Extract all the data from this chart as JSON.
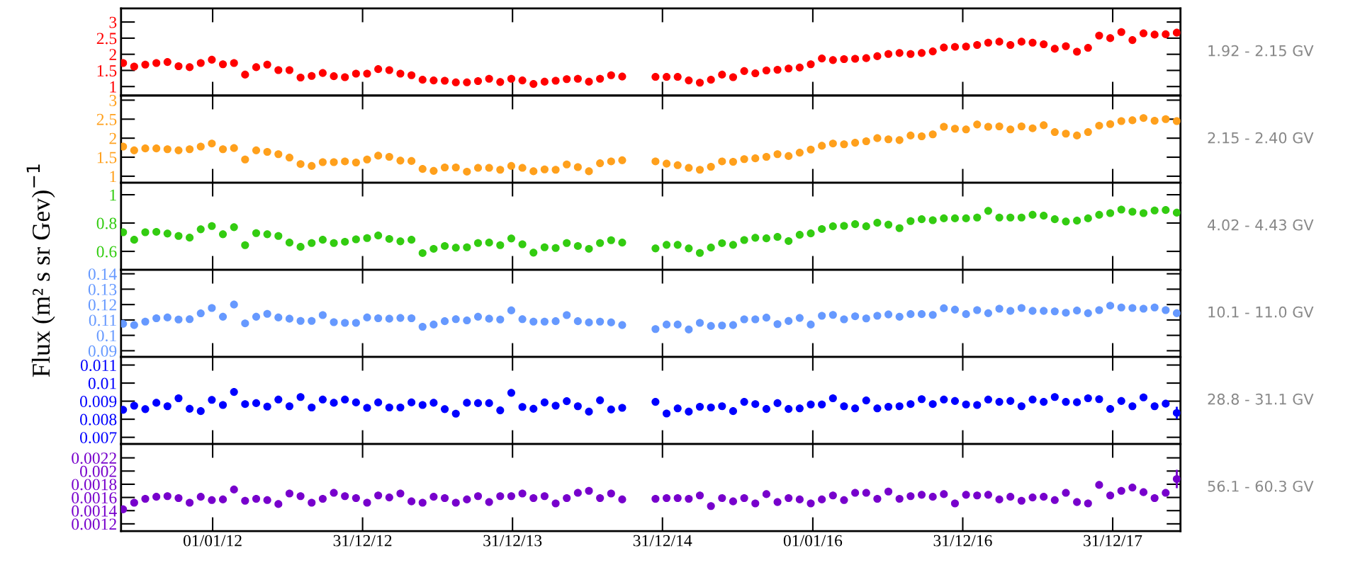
{
  "chart_data": [
    {
      "type": "scatter",
      "marker": "circle",
      "tick_labels": "y",
      "xlim": [
        "2011-05-23",
        "2018-06-14"
      ],
      "ylim": [
        0.72,
        3.42
      ],
      "yticks": [
        1,
        1.5,
        2,
        2.5,
        3
      ],
      "xticks": [
        {
          "value": "2012-01-01",
          "label": null
        },
        {
          "value": "2012-12-31",
          "label": null
        },
        {
          "value": "2013-12-31",
          "label": null
        },
        {
          "value": "2014-12-31",
          "label": null
        },
        {
          "value": "2016-01-01",
          "label": null
        },
        {
          "value": "2016-12-31",
          "label": null
        },
        {
          "value": "2017-12-31",
          "label": null
        }
      ],
      "x": [
        "2011-05-28",
        "2011-06-24",
        "2011-07-21",
        "2011-08-17",
        "2011-09-13",
        "2011-10-10",
        "2011-11-06",
        "2011-12-03",
        "2011-12-30",
        "2012-01-26",
        "2012-02-22",
        "2012-03-20",
        "2012-04-16",
        "2012-05-13",
        "2012-06-09",
        "2012-07-06",
        "2012-08-02",
        "2012-08-29",
        "2012-09-25",
        "2012-10-22",
        "2012-11-18",
        "2012-12-15",
        "2013-01-11",
        "2013-02-07",
        "2013-03-06",
        "2013-04-02",
        "2013-04-29",
        "2013-05-26",
        "2013-06-22",
        "2013-07-19",
        "2013-08-15",
        "2013-09-11",
        "2013-10-08",
        "2013-11-04",
        "2013-12-01",
        "2013-12-28",
        "2014-01-24",
        "2014-02-20",
        "2014-03-19",
        "2014-04-15",
        "2014-05-12",
        "2014-06-08",
        "2014-07-05",
        "2014-08-01",
        "2014-08-28",
        "2014-09-24",
        "2014-12-14",
        "2015-01-10",
        "2015-02-06",
        "2015-03-05",
        "2015-04-01",
        "2015-04-28",
        "2015-05-25",
        "2015-06-21",
        "2015-07-18",
        "2015-08-14",
        "2015-09-10",
        "2015-10-07",
        "2015-11-03",
        "2015-11-30",
        "2015-12-27",
        "2016-01-23",
        "2016-02-19",
        "2016-03-17",
        "2016-04-13",
        "2016-05-10",
        "2016-06-06",
        "2016-07-03",
        "2016-07-30",
        "2016-08-26",
        "2016-09-22",
        "2016-10-19",
        "2016-11-15",
        "2016-12-12",
        "2017-01-08",
        "2017-02-04",
        "2017-03-03",
        "2017-03-30",
        "2017-04-26",
        "2017-05-23",
        "2017-06-19",
        "2017-07-16",
        "2017-08-12",
        "2017-09-08",
        "2017-10-05",
        "2017-11-01",
        "2017-11-28",
        "2017-12-25",
        "2018-01-21",
        "2018-02-17",
        "2018-03-16",
        "2018-04-12",
        "2018-05-09",
        "2018-06-05"
      ],
      "series": [
        {
          "name": "1.92 - 2.15 GV",
          "color": "#ff0000",
          "values": [
            1.73,
            1.62,
            1.68,
            1.73,
            1.76,
            1.63,
            1.6,
            1.73,
            1.83,
            1.69,
            1.73,
            1.37,
            1.6,
            1.68,
            1.51,
            1.51,
            1.28,
            1.33,
            1.42,
            1.32,
            1.29,
            1.4,
            1.4,
            1.54,
            1.51,
            1.4,
            1.35,
            1.21,
            1.19,
            1.18,
            1.13,
            1.13,
            1.17,
            1.24,
            1.14,
            1.24,
            1.19,
            1.08,
            1.15,
            1.18,
            1.23,
            1.24,
            1.15,
            1.24,
            1.35,
            1.31,
            1.3,
            1.3,
            1.3,
            1.19,
            1.12,
            1.21,
            1.37,
            1.29,
            1.48,
            1.41,
            1.5,
            1.52,
            1.56,
            1.59,
            1.69,
            1.87,
            1.82,
            1.85,
            1.86,
            1.88,
            1.94,
            2.01,
            2.04,
            2.01,
            2.04,
            2.09,
            2.21,
            2.23,
            2.24,
            2.29,
            2.36,
            2.39,
            2.29,
            2.39,
            2.36,
            2.31,
            2.17,
            2.25,
            2.08,
            2.2,
            2.58,
            2.5,
            2.69,
            2.44,
            2.65,
            2.61,
            2.62,
            2.67
          ]
        }
      ]
    },
    {
      "type": "scatter",
      "marker": "circle",
      "tick_labels": "y",
      "xlim": [
        "2011-05-23",
        "2018-06-14"
      ],
      "ylim": [
        0.83,
        3.12
      ],
      "yticks": [
        1,
        1.5,
        2,
        2.5,
        3
      ],
      "xticks": [
        {
          "value": "2012-01-01",
          "label": null
        },
        {
          "value": "2012-12-31",
          "label": null
        },
        {
          "value": "2013-12-31",
          "label": null
        },
        {
          "value": "2014-12-31",
          "label": null
        },
        {
          "value": "2016-01-01",
          "label": null
        },
        {
          "value": "2016-12-31",
          "label": null
        },
        {
          "value": "2017-12-31",
          "label": null
        }
      ],
      "x": [
        "2011-05-28",
        "2011-06-24",
        "2011-07-21",
        "2011-08-17",
        "2011-09-13",
        "2011-10-10",
        "2011-11-06",
        "2011-12-03",
        "2011-12-30",
        "2012-01-26",
        "2012-02-22",
        "2012-03-20",
        "2012-04-16",
        "2012-05-13",
        "2012-06-09",
        "2012-07-06",
        "2012-08-02",
        "2012-08-29",
        "2012-09-25",
        "2012-10-22",
        "2012-11-18",
        "2012-12-15",
        "2013-01-11",
        "2013-02-07",
        "2013-03-06",
        "2013-04-02",
        "2013-04-29",
        "2013-05-26",
        "2013-06-22",
        "2013-07-19",
        "2013-08-15",
        "2013-09-11",
        "2013-10-08",
        "2013-11-04",
        "2013-12-01",
        "2013-12-28",
        "2014-01-24",
        "2014-02-20",
        "2014-03-19",
        "2014-04-15",
        "2014-05-12",
        "2014-06-08",
        "2014-07-05",
        "2014-08-01",
        "2014-08-28",
        "2014-09-24",
        "2014-12-14",
        "2015-01-10",
        "2015-02-06",
        "2015-03-05",
        "2015-04-01",
        "2015-04-28",
        "2015-05-25",
        "2015-06-21",
        "2015-07-18",
        "2015-08-14",
        "2015-09-10",
        "2015-10-07",
        "2015-11-03",
        "2015-11-30",
        "2015-12-27",
        "2016-01-23",
        "2016-02-19",
        "2016-03-17",
        "2016-04-13",
        "2016-05-10",
        "2016-06-06",
        "2016-07-03",
        "2016-07-30",
        "2016-08-26",
        "2016-09-22",
        "2016-10-19",
        "2016-11-15",
        "2016-12-12",
        "2017-01-08",
        "2017-02-04",
        "2017-03-03",
        "2017-03-30",
        "2017-04-26",
        "2017-05-23",
        "2017-06-19",
        "2017-07-16",
        "2017-08-12",
        "2017-09-08",
        "2017-10-05",
        "2017-11-01",
        "2017-11-28",
        "2017-12-25",
        "2018-01-21",
        "2018-02-17",
        "2018-03-16",
        "2018-04-12",
        "2018-05-09",
        "2018-06-05"
      ],
      "series": [
        {
          "name": "2.15 - 2.40 GV",
          "color": "#ffa01c",
          "values": [
            1.78,
            1.68,
            1.73,
            1.73,
            1.71,
            1.68,
            1.71,
            1.78,
            1.86,
            1.71,
            1.74,
            1.44,
            1.68,
            1.64,
            1.58,
            1.49,
            1.32,
            1.27,
            1.37,
            1.37,
            1.39,
            1.36,
            1.44,
            1.54,
            1.51,
            1.41,
            1.4,
            1.19,
            1.14,
            1.23,
            1.23,
            1.12,
            1.22,
            1.22,
            1.17,
            1.27,
            1.22,
            1.13,
            1.18,
            1.17,
            1.31,
            1.24,
            1.13,
            1.34,
            1.39,
            1.42,
            1.39,
            1.33,
            1.29,
            1.22,
            1.17,
            1.25,
            1.39,
            1.38,
            1.45,
            1.47,
            1.51,
            1.58,
            1.53,
            1.62,
            1.7,
            1.8,
            1.86,
            1.84,
            1.88,
            1.92,
            2.0,
            1.97,
            1.95,
            2.07,
            2.05,
            2.1,
            2.3,
            2.25,
            2.23,
            2.36,
            2.3,
            2.31,
            2.23,
            2.31,
            2.26,
            2.34,
            2.16,
            2.12,
            2.07,
            2.16,
            2.33,
            2.37,
            2.45,
            2.47,
            2.53,
            2.46,
            2.5,
            2.45
          ]
        }
      ]
    },
    {
      "type": "scatter",
      "marker": "circle",
      "tick_labels": "y",
      "xlim": [
        "2011-05-23",
        "2018-06-14"
      ],
      "ylim": [
        0.47,
        1.085
      ],
      "yticks": [
        0.6,
        0.8,
        1
      ],
      "xticks": [
        {
          "value": "2012-01-01",
          "label": null
        },
        {
          "value": "2012-12-31",
          "label": null
        },
        {
          "value": "2013-12-31",
          "label": null
        },
        {
          "value": "2014-12-31",
          "label": null
        },
        {
          "value": "2016-01-01",
          "label": null
        },
        {
          "value": "2016-12-31",
          "label": null
        },
        {
          "value": "2017-12-31",
          "label": null
        }
      ],
      "ylabel": "Flux (m² s sr Gev)$^{−1}$",
      "x": [
        "2011-05-28",
        "2011-06-24",
        "2011-07-21",
        "2011-08-17",
        "2011-09-13",
        "2011-10-10",
        "2011-11-06",
        "2011-12-03",
        "2011-12-30",
        "2012-01-26",
        "2012-02-22",
        "2012-03-20",
        "2012-04-16",
        "2012-05-13",
        "2012-06-09",
        "2012-07-06",
        "2012-08-02",
        "2012-08-29",
        "2012-09-25",
        "2012-10-22",
        "2012-11-18",
        "2012-12-15",
        "2013-01-11",
        "2013-02-07",
        "2013-03-06",
        "2013-04-02",
        "2013-04-29",
        "2013-05-26",
        "2013-06-22",
        "2013-07-19",
        "2013-08-15",
        "2013-09-11",
        "2013-10-08",
        "2013-11-04",
        "2013-12-01",
        "2013-12-28",
        "2014-01-24",
        "2014-02-20",
        "2014-03-19",
        "2014-04-15",
        "2014-05-12",
        "2014-06-08",
        "2014-07-05",
        "2014-08-01",
        "2014-08-28",
        "2014-09-24",
        "2014-12-14",
        "2015-01-10",
        "2015-02-06",
        "2015-03-05",
        "2015-04-01",
        "2015-04-28",
        "2015-05-25",
        "2015-06-21",
        "2015-07-18",
        "2015-08-14",
        "2015-09-10",
        "2015-10-07",
        "2015-11-03",
        "2015-11-30",
        "2015-12-27",
        "2016-01-23",
        "2016-02-19",
        "2016-03-17",
        "2016-04-13",
        "2016-05-10",
        "2016-06-06",
        "2016-07-03",
        "2016-07-30",
        "2016-08-26",
        "2016-09-22",
        "2016-10-19",
        "2016-11-15",
        "2016-12-12",
        "2017-01-08",
        "2017-02-04",
        "2017-03-03",
        "2017-03-30",
        "2017-04-26",
        "2017-05-23",
        "2017-06-19",
        "2017-07-16",
        "2017-08-12",
        "2017-09-08",
        "2017-10-05",
        "2017-11-01",
        "2017-11-28",
        "2017-12-25",
        "2018-01-21",
        "2018-02-17",
        "2018-03-16",
        "2018-04-12",
        "2018-05-09",
        "2018-06-05"
      ],
      "series": [
        {
          "name": "4.02 - 4.43 GV",
          "color": "#33cc11",
          "values": [
            0.735,
            0.682,
            0.735,
            0.738,
            0.726,
            0.709,
            0.697,
            0.756,
            0.779,
            0.721,
            0.771,
            0.644,
            0.729,
            0.721,
            0.709,
            0.662,
            0.632,
            0.659,
            0.682,
            0.659,
            0.668,
            0.685,
            0.694,
            0.712,
            0.688,
            0.671,
            0.682,
            0.588,
            0.618,
            0.638,
            0.626,
            0.629,
            0.659,
            0.662,
            0.644,
            0.691,
            0.65,
            0.591,
            0.629,
            0.624,
            0.659,
            0.638,
            0.618,
            0.659,
            0.679,
            0.662,
            0.621,
            0.646,
            0.646,
            0.621,
            0.589,
            0.627,
            0.658,
            0.646,
            0.68,
            0.696,
            0.692,
            0.702,
            0.673,
            0.717,
            0.727,
            0.758,
            0.777,
            0.78,
            0.792,
            0.777,
            0.802,
            0.789,
            0.764,
            0.814,
            0.827,
            0.82,
            0.833,
            0.833,
            0.833,
            0.839,
            0.886,
            0.839,
            0.839,
            0.839,
            0.858,
            0.852,
            0.827,
            0.811,
            0.817,
            0.833,
            0.858,
            0.87,
            0.895,
            0.88,
            0.87,
            0.889,
            0.892,
            0.873
          ]
        }
      ]
    },
    {
      "type": "scatter",
      "marker": "circle",
      "tick_labels": "y",
      "xlim": [
        "2011-05-23",
        "2018-06-14"
      ],
      "ylim": [
        0.086,
        0.1426
      ],
      "yticks": [
        0.09,
        0.1,
        0.11,
        0.12,
        0.13,
        0.14
      ],
      "xticks": [
        {
          "value": "2012-01-01",
          "label": null
        },
        {
          "value": "2012-12-31",
          "label": null
        },
        {
          "value": "2013-12-31",
          "label": null
        },
        {
          "value": "2014-12-31",
          "label": null
        },
        {
          "value": "2016-01-01",
          "label": null
        },
        {
          "value": "2016-12-31",
          "label": null
        },
        {
          "value": "2017-12-31",
          "label": null
        }
      ],
      "x": [
        "2011-05-28",
        "2011-06-24",
        "2011-07-21",
        "2011-08-17",
        "2011-09-13",
        "2011-10-10",
        "2011-11-06",
        "2011-12-03",
        "2011-12-30",
        "2012-01-26",
        "2012-02-22",
        "2012-03-20",
        "2012-04-16",
        "2012-05-13",
        "2012-06-09",
        "2012-07-06",
        "2012-08-02",
        "2012-08-29",
        "2012-09-25",
        "2012-10-22",
        "2012-11-18",
        "2012-12-15",
        "2013-01-11",
        "2013-02-07",
        "2013-03-06",
        "2013-04-02",
        "2013-04-29",
        "2013-05-26",
        "2013-06-22",
        "2013-07-19",
        "2013-08-15",
        "2013-09-11",
        "2013-10-08",
        "2013-11-04",
        "2013-12-01",
        "2013-12-28",
        "2014-01-24",
        "2014-02-20",
        "2014-03-19",
        "2014-04-15",
        "2014-05-12",
        "2014-06-08",
        "2014-07-05",
        "2014-08-01",
        "2014-08-28",
        "2014-09-24",
        "2014-12-14",
        "2015-01-10",
        "2015-02-06",
        "2015-03-05",
        "2015-04-01",
        "2015-04-28",
        "2015-05-25",
        "2015-06-21",
        "2015-07-18",
        "2015-08-14",
        "2015-09-10",
        "2015-10-07",
        "2015-11-03",
        "2015-11-30",
        "2015-12-27",
        "2016-01-23",
        "2016-02-19",
        "2016-03-17",
        "2016-04-13",
        "2016-05-10",
        "2016-06-06",
        "2016-07-03",
        "2016-07-30",
        "2016-08-26",
        "2016-09-22",
        "2016-10-19",
        "2016-11-15",
        "2016-12-12",
        "2017-01-08",
        "2017-02-04",
        "2017-03-03",
        "2017-03-30",
        "2017-04-26",
        "2017-05-23",
        "2017-06-19",
        "2017-07-16",
        "2017-08-12",
        "2017-09-08",
        "2017-10-05",
        "2017-11-01",
        "2017-11-28",
        "2017-12-25",
        "2018-01-21",
        "2018-02-17",
        "2018-03-16",
        "2018-04-12",
        "2018-05-09",
        "2018-06-05"
      ],
      "series": [
        {
          "name": "10.1 - 11.0 GV",
          "color": "#6699ff",
          "values": [
            0.1075,
            0.1067,
            0.1089,
            0.1111,
            0.1116,
            0.1103,
            0.1105,
            0.1143,
            0.1178,
            0.1121,
            0.12,
            0.1078,
            0.1121,
            0.114,
            0.1116,
            0.1108,
            0.1094,
            0.1094,
            0.1132,
            0.1086,
            0.1081,
            0.1081,
            0.1116,
            0.1111,
            0.1108,
            0.1113,
            0.1111,
            0.1056,
            0.107,
            0.1092,
            0.1105,
            0.1097,
            0.1121,
            0.1108,
            0.1103,
            0.1162,
            0.1105,
            0.1089,
            0.1089,
            0.1092,
            0.1132,
            0.1092,
            0.1084,
            0.1089,
            0.1084,
            0.1067,
            0.1041,
            0.107,
            0.107,
            0.1038,
            0.1081,
            0.1061,
            0.1064,
            0.1067,
            0.1104,
            0.1104,
            0.1115,
            0.1073,
            0.1093,
            0.1113,
            0.107,
            0.1127,
            0.1133,
            0.1104,
            0.1124,
            0.111,
            0.1127,
            0.1136,
            0.1121,
            0.1138,
            0.1138,
            0.1133,
            0.1176,
            0.1167,
            0.1138,
            0.1164,
            0.1144,
            0.1173,
            0.1159,
            0.1178,
            0.1159,
            0.1159,
            0.1156,
            0.1147,
            0.1161,
            0.1144,
            0.1164,
            0.1193,
            0.1181,
            0.1178,
            0.1173,
            0.1181,
            0.1164,
            0.1144
          ]
        }
      ]
    },
    {
      "type": "scatter",
      "marker": "circle",
      "tick_labels": "y",
      "xlim": [
        "2011-05-23",
        "2018-06-14"
      ],
      "ylim": [
        0.00663,
        0.01145
      ],
      "yticks": [
        0.007,
        0.008,
        0.009,
        0.01,
        0.011
      ],
      "xticks": [
        {
          "value": "2012-01-01",
          "label": null
        },
        {
          "value": "2012-12-31",
          "label": null
        },
        {
          "value": "2013-12-31",
          "label": null
        },
        {
          "value": "2014-12-31",
          "label": null
        },
        {
          "value": "2016-01-01",
          "label": null
        },
        {
          "value": "2016-12-31",
          "label": null
        },
        {
          "value": "2017-12-31",
          "label": null
        }
      ],
      "x": [
        "2011-05-28",
        "2011-06-24",
        "2011-07-21",
        "2011-08-17",
        "2011-09-13",
        "2011-10-10",
        "2011-11-06",
        "2011-12-03",
        "2011-12-30",
        "2012-01-26",
        "2012-02-22",
        "2012-03-20",
        "2012-04-16",
        "2012-05-13",
        "2012-06-09",
        "2012-07-06",
        "2012-08-02",
        "2012-08-29",
        "2012-09-25",
        "2012-10-22",
        "2012-11-18",
        "2012-12-15",
        "2013-01-11",
        "2013-02-07",
        "2013-03-06",
        "2013-04-02",
        "2013-04-29",
        "2013-05-26",
        "2013-06-22",
        "2013-07-19",
        "2013-08-15",
        "2013-09-11",
        "2013-10-08",
        "2013-11-04",
        "2013-12-01",
        "2013-12-28",
        "2014-01-24",
        "2014-02-20",
        "2014-03-19",
        "2014-04-15",
        "2014-05-12",
        "2014-06-08",
        "2014-07-05",
        "2014-08-01",
        "2014-08-28",
        "2014-09-24",
        "2014-12-14",
        "2015-01-10",
        "2015-02-06",
        "2015-03-05",
        "2015-04-01",
        "2015-04-28",
        "2015-05-25",
        "2015-06-21",
        "2015-07-18",
        "2015-08-14",
        "2015-09-10",
        "2015-10-07",
        "2015-11-03",
        "2015-11-30",
        "2015-12-27",
        "2016-01-23",
        "2016-02-19",
        "2016-03-17",
        "2016-04-13",
        "2016-05-10",
        "2016-06-06",
        "2016-07-03",
        "2016-07-30",
        "2016-08-26",
        "2016-09-22",
        "2016-10-19",
        "2016-11-15",
        "2016-12-12",
        "2017-01-08",
        "2017-02-04",
        "2017-03-03",
        "2017-03-30",
        "2017-04-26",
        "2017-05-23",
        "2017-06-19",
        "2017-07-16",
        "2017-08-12",
        "2017-09-08",
        "2017-10-05",
        "2017-11-01",
        "2017-11-28",
        "2017-12-25",
        "2018-01-21",
        "2018-02-17",
        "2018-03-16",
        "2018-04-12",
        "2018-05-09",
        "2018-06-05"
      ],
      "series": [
        {
          "name": "28.8 - 31.1 GV",
          "color": "#0000ff",
          "values": [
            0.00852,
            0.00875,
            0.00856,
            0.00891,
            0.00872,
            0.00916,
            0.00858,
            0.00845,
            0.00907,
            0.00879,
            0.00951,
            0.00884,
            0.00889,
            0.0087,
            0.00909,
            0.00872,
            0.00923,
            0.00865,
            0.00909,
            0.00891,
            0.00909,
            0.00893,
            0.00863,
            0.00893,
            0.00865,
            0.00865,
            0.00893,
            0.00879,
            0.00891,
            0.00856,
            0.00831,
            0.00891,
            0.00889,
            0.00889,
            0.00849,
            0.00946,
            0.00868,
            0.00858,
            0.00893,
            0.00875,
            0.009,
            0.00872,
            0.00842,
            0.00905,
            0.00854,
            0.00863,
            0.00896,
            0.00832,
            0.0086,
            0.00842,
            0.00869,
            0.00865,
            0.00872,
            0.00845,
            0.00896,
            0.00884,
            0.00857,
            0.00889,
            0.00857,
            0.0086,
            0.00882,
            0.00882,
            0.00916,
            0.00872,
            0.0086,
            0.00904,
            0.0086,
            0.00869,
            0.00872,
            0.00884,
            0.00911,
            0.00884,
            0.00909,
            0.00901,
            0.00882,
            0.00879,
            0.00909,
            0.00896,
            0.00901,
            0.00872,
            0.00909,
            0.00896,
            0.00923,
            0.00896,
            0.00894,
            0.00916,
            0.00911,
            0.00857,
            0.00901,
            0.00872,
            0.00921,
            0.00872,
            0.00886,
            0.00835
          ],
          "errors": [
            null,
            null,
            null,
            null,
            null,
            null,
            null,
            null,
            null,
            null,
            null,
            null,
            null,
            null,
            null,
            null,
            null,
            null,
            null,
            null,
            null,
            null,
            null,
            null,
            null,
            null,
            null,
            null,
            null,
            null,
            null,
            null,
            null,
            null,
            null,
            null,
            null,
            null,
            null,
            null,
            null,
            null,
            null,
            null,
            null,
            null,
            null,
            null,
            null,
            null,
            null,
            null,
            null,
            null,
            null,
            null,
            null,
            null,
            null,
            null,
            null,
            null,
            null,
            null,
            null,
            null,
            null,
            null,
            null,
            null,
            null,
            null,
            null,
            null,
            null,
            null,
            null,
            null,
            null,
            null,
            null,
            null,
            null,
            null,
            null,
            null,
            null,
            null,
            null,
            null,
            null,
            null,
            null,
            0.00034
          ]
        }
      ]
    },
    {
      "type": "scatter",
      "marker": "circle",
      "xlim": [
        "2011-05-23",
        "2018-06-14"
      ],
      "ylim": [
        0.00109,
        0.00241
      ],
      "yticks": [
        0.0012,
        0.0014,
        0.0016,
        0.0018,
        0.002,
        0.0022
      ],
      "xticks": [
        {
          "value": "2012-01-01",
          "label": "01/01/12"
        },
        {
          "value": "2012-12-31",
          "label": "31/12/12"
        },
        {
          "value": "2013-12-31",
          "label": "31/12/13"
        },
        {
          "value": "2014-12-31",
          "label": "31/12/14"
        },
        {
          "value": "2016-01-01",
          "label": "01/01/16"
        },
        {
          "value": "2016-12-31",
          "label": "31/12/16"
        },
        {
          "value": "2017-12-31",
          "label": "31/12/17"
        }
      ],
      "x": [
        "2011-05-28",
        "2011-06-24",
        "2011-07-21",
        "2011-08-17",
        "2011-09-13",
        "2011-10-10",
        "2011-11-06",
        "2011-12-03",
        "2011-12-30",
        "2012-01-26",
        "2012-02-22",
        "2012-03-20",
        "2012-04-16",
        "2012-05-13",
        "2012-06-09",
        "2012-07-06",
        "2012-08-02",
        "2012-08-29",
        "2012-09-25",
        "2012-10-22",
        "2012-11-18",
        "2012-12-15",
        "2013-01-11",
        "2013-02-07",
        "2013-03-06",
        "2013-04-02",
        "2013-04-29",
        "2013-05-26",
        "2013-06-22",
        "2013-07-19",
        "2013-08-15",
        "2013-09-11",
        "2013-10-08",
        "2013-11-04",
        "2013-12-01",
        "2013-12-28",
        "2014-01-24",
        "2014-02-20",
        "2014-03-19",
        "2014-04-15",
        "2014-05-12",
        "2014-06-08",
        "2014-07-05",
        "2014-08-01",
        "2014-08-28",
        "2014-09-24",
        "2014-12-14",
        "2015-01-10",
        "2015-02-06",
        "2015-03-05",
        "2015-04-01",
        "2015-04-28",
        "2015-05-25",
        "2015-06-21",
        "2015-07-18",
        "2015-08-14",
        "2015-09-10",
        "2015-10-07",
        "2015-11-03",
        "2015-11-30",
        "2015-12-27",
        "2016-01-23",
        "2016-02-19",
        "2016-03-17",
        "2016-04-13",
        "2016-05-10",
        "2016-06-06",
        "2016-07-03",
        "2016-07-30",
        "2016-08-26",
        "2016-09-22",
        "2016-10-19",
        "2016-11-15",
        "2016-12-12",
        "2017-01-08",
        "2017-02-04",
        "2017-03-03",
        "2017-03-30",
        "2017-04-26",
        "2017-05-23",
        "2017-06-19",
        "2017-07-16",
        "2017-08-12",
        "2017-09-08",
        "2017-10-05",
        "2017-11-01",
        "2017-11-28",
        "2017-12-25",
        "2018-01-21",
        "2018-02-17",
        "2018-03-16",
        "2018-04-12",
        "2018-05-09",
        "2018-06-05"
      ],
      "series": [
        {
          "name": "56.1 - 60.3 GV",
          "color": "#7700cc",
          "values": [
            0.00142,
            0.00152,
            0.00158,
            0.00161,
            0.00162,
            0.00159,
            0.00152,
            0.00161,
            0.00156,
            0.00157,
            0.00172,
            0.00155,
            0.00158,
            0.00156,
            0.0015,
            0.00166,
            0.00162,
            0.00152,
            0.00158,
            0.00167,
            0.00162,
            0.00159,
            0.00152,
            0.00163,
            0.0016,
            0.00166,
            0.00154,
            0.00152,
            0.00161,
            0.00159,
            0.00152,
            0.00157,
            0.00162,
            0.00153,
            0.00162,
            0.00162,
            0.00166,
            0.00159,
            0.00162,
            0.00151,
            0.00159,
            0.00167,
            0.0017,
            0.00159,
            0.00166,
            0.00157,
            0.00158,
            0.00159,
            0.00159,
            0.00158,
            0.00163,
            0.00147,
            0.00159,
            0.00154,
            0.00159,
            0.00151,
            0.00165,
            0.00153,
            0.00159,
            0.00157,
            0.00151,
            0.00157,
            0.00163,
            0.00156,
            0.00167,
            0.00167,
            0.00158,
            0.00169,
            0.00158,
            0.00162,
            0.00164,
            0.00161,
            0.00165,
            0.00151,
            0.00164,
            0.00163,
            0.00164,
            0.00157,
            0.00161,
            0.00155,
            0.0016,
            0.00161,
            0.00156,
            0.00167,
            0.00153,
            0.00151,
            0.00179,
            0.00163,
            0.0017,
            0.00175,
            0.00168,
            0.00159,
            0.00167,
            0.00188
          ],
          "errors": [
            null,
            null,
            null,
            null,
            null,
            null,
            null,
            null,
            null,
            null,
            null,
            null,
            null,
            null,
            null,
            null,
            null,
            null,
            null,
            null,
            null,
            null,
            null,
            null,
            null,
            null,
            null,
            null,
            null,
            null,
            null,
            null,
            null,
            null,
            null,
            null,
            null,
            null,
            null,
            null,
            null,
            null,
            null,
            null,
            null,
            null,
            null,
            null,
            null,
            null,
            null,
            null,
            null,
            null,
            null,
            null,
            null,
            null,
            null,
            null,
            null,
            null,
            null,
            null,
            null,
            null,
            null,
            null,
            null,
            null,
            null,
            null,
            null,
            null,
            null,
            null,
            null,
            null,
            null,
            null,
            null,
            null,
            null,
            null,
            null,
            null,
            null,
            null,
            null,
            null,
            null,
            null,
            null,
            0.00014
          ]
        }
      ]
    }
  ]
}
